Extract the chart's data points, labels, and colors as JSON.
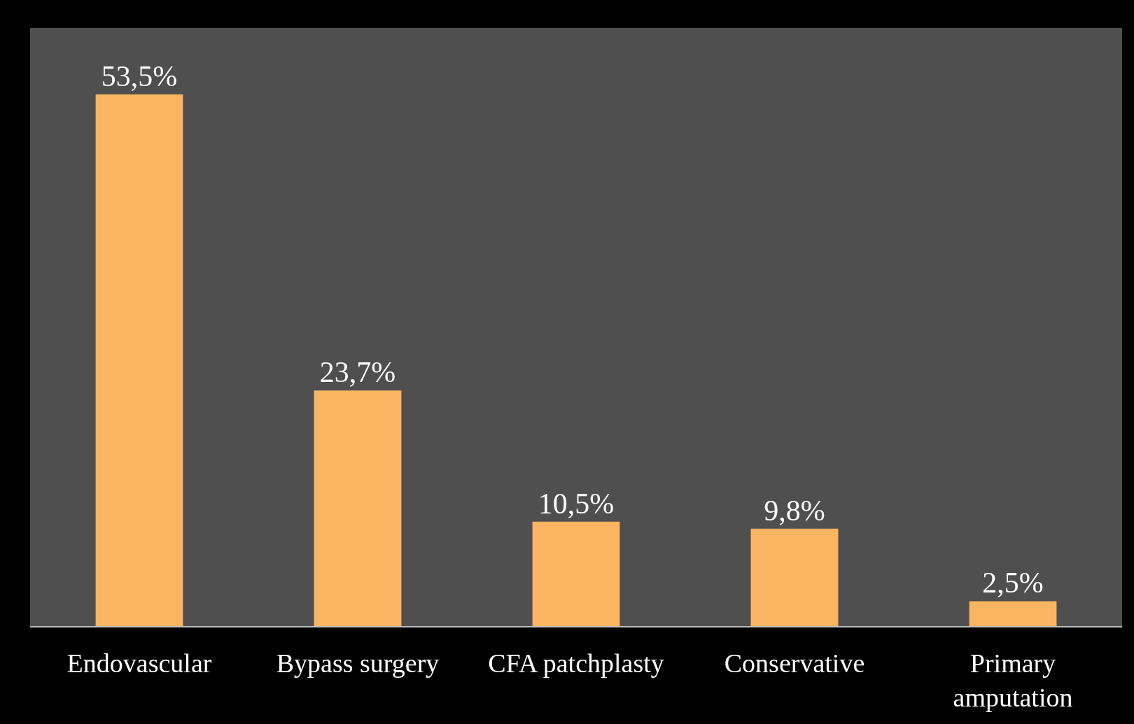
{
  "chart_data": {
    "type": "bar",
    "categories": [
      "Endovascular",
      "Bypass surgery",
      "CFA patchplasty",
      "Conservative",
      "Primary amputation"
    ],
    "values": [
      53.5,
      23.7,
      10.5,
      9.8,
      2.5
    ],
    "value_labels": [
      "53,5%",
      "23,7%",
      "10,5%",
      "9,8%",
      "2,5%"
    ],
    "color": "#fbb461"
  }
}
